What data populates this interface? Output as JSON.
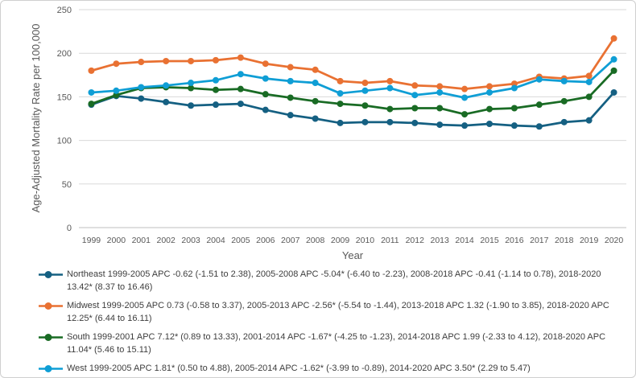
{
  "chart_data": {
    "type": "line",
    "title": "",
    "xlabel": "Year",
    "ylabel": "Age-Adjusted Mortality Rate per 100,000",
    "ylim": [
      0,
      250
    ],
    "yticks": [
      0,
      50,
      100,
      150,
      200,
      250
    ],
    "grid": "horizontal",
    "legend_position": "bottom",
    "x": [
      1999,
      2000,
      2001,
      2002,
      2003,
      2004,
      2005,
      2006,
      2007,
      2008,
      2009,
      2010,
      2011,
      2012,
      2013,
      2014,
      2015,
      2016,
      2017,
      2018,
      2019,
      2020
    ],
    "series": [
      {
        "name": "Northeast",
        "color": "#156082",
        "legend_label": "Northeast 1999-2005 APC -0.62 (-1.51 to 2.38), 2005-2008 APC -5.04* (-6.40 to -2.23), 2008-2018 APC -0.41 (-1.14 to 0.78), 2018-2020 13.42* (8.37 to 16.46)",
        "values": [
          141,
          151,
          148,
          144,
          140,
          141,
          142,
          135,
          129,
          125,
          120,
          121,
          121,
          120,
          118,
          117,
          119,
          117,
          116,
          121,
          123,
          155
        ]
      },
      {
        "name": "Midwest",
        "color": "#E97132",
        "legend_label": "Midwest 1999-2005 APC 0.73 (-0.58 to 3.37), 2005-2013 APC -2.56* (-5.54 to -1.44), 2013-2018 APC 1.32 (-1.90 to 3.85), 2018-2020 APC 12.25* (6.44 to 16.11)",
        "values": [
          180,
          188,
          190,
          191,
          191,
          192,
          195,
          188,
          184,
          181,
          168,
          166,
          168,
          163,
          162,
          159,
          162,
          165,
          173,
          171,
          174,
          217
        ]
      },
      {
        "name": "South",
        "color": "#196B24",
        "legend_label": "South 1999-2001 APC 7.12* (0.89 to 13.33), 2001-2014 APC -1.67* (-4.25 to -1.23), 2014-2018 APC 1.99 (-2.33 to 4.12), 2018-2020 APC 11.04* (5.46 to 15.11)",
        "values": [
          142,
          152,
          160,
          161,
          160,
          158,
          159,
          153,
          149,
          145,
          142,
          140,
          136,
          137,
          137,
          130,
          136,
          137,
          141,
          145,
          150,
          180
        ]
      },
      {
        "name": "West",
        "color": "#0F9ED5",
        "legend_label": "West 1999-2005 APC 1.81* (0.50 to 4.88), 2005-2014 APC -1.62* (-3.99 to -0.89), 2014-2020 APC 3.50* (2.29 to 5.47)",
        "values": [
          155,
          157,
          161,
          163,
          166,
          169,
          176,
          171,
          168,
          166,
          154,
          157,
          160,
          152,
          155,
          149,
          155,
          160,
          170,
          168,
          167,
          193
        ]
      }
    ],
    "axis_colors": {
      "gridline": "#D9D9D9",
      "axis_line": "#BFBFBF"
    }
  }
}
